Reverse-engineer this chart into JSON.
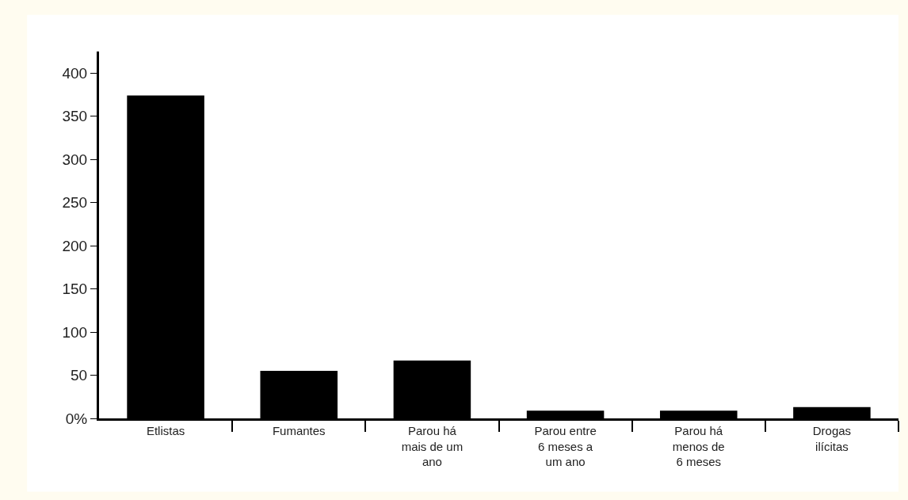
{
  "chart_data": {
    "type": "bar",
    "categories": [
      "Etlistas",
      "Fumantes",
      "Parou há\nmais de um\nano",
      "Parou entre\n6 meses a\num ano",
      "Parou há\nmenos de\n6 meses",
      "Drogas\nilícitas"
    ],
    "values": [
      374,
      55,
      67,
      9,
      9,
      13
    ],
    "color": "#000000",
    "ylim": [
      0,
      425
    ],
    "yticks": [
      {
        "value": 0,
        "label": "0%"
      },
      50,
      100,
      150,
      200,
      250,
      300,
      350,
      400
    ],
    "grid": false
  }
}
